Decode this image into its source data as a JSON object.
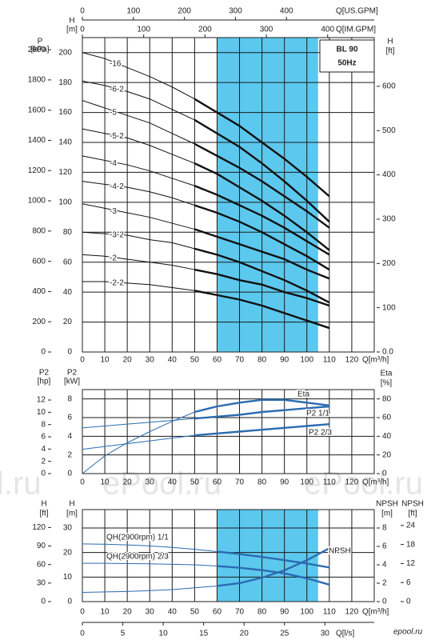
{
  "chart_data": [
    {
      "type": "line",
      "model": "BL 90",
      "frequency": "50Hz",
      "x": [
        0,
        10,
        20,
        30,
        40,
        50,
        60,
        70,
        80,
        90,
        100,
        110
      ],
      "xlabel": "Q[m³/h]",
      "xlim": [
        0,
        130
      ],
      "xticks": [
        0,
        10,
        20,
        30,
        40,
        50,
        60,
        70,
        80,
        90,
        100,
        110,
        120
      ],
      "x2label": "Q[US.GPM]",
      "x2lim": [
        0,
        572
      ],
      "x2ticks": [
        0,
        100,
        200,
        300,
        400
      ],
      "x3label": "Q[IM.GPM]",
      "x3lim": [
        0,
        476
      ],
      "x3ticks": [
        0,
        100,
        200,
        300,
        400
      ],
      "ylabel": [
        "H",
        "[m]"
      ],
      "ylim": [
        0,
        210
      ],
      "yticks": [
        0,
        20,
        40,
        60,
        80,
        100,
        120,
        140,
        160,
        180,
        200
      ],
      "y2label": [
        "H",
        "[ft]"
      ],
      "y2lim": [
        0,
        710
      ],
      "y2ticks": [
        {
          "value": 0,
          "label": "0.0"
        },
        100,
        200,
        300,
        400,
        500,
        600
      ],
      "y3label": [
        "P",
        "[kPa]"
      ],
      "y3lim": [
        0,
        2080
      ],
      "y3ticks": [
        0,
        200,
        400,
        600,
        800,
        1000,
        1200,
        1400,
        1600,
        1800,
        2000
      ],
      "band": [
        60,
        105
      ],
      "band_color": "#5cc8ee",
      "grid": true,
      "series": [
        {
          "name": "-16",
          "color": "#111111",
          "values": [
            200,
            196,
            190,
            184,
            177,
            169,
            160,
            151,
            140,
            129,
            117,
            104
          ]
        },
        {
          "name": "-6-2",
          "color": "#111111",
          "values": [
            181,
            178,
            174,
            169,
            162,
            155,
            146,
            137,
            126,
            114,
            101,
            87
          ]
        },
        {
          "name": "-5",
          "color": "#111111",
          "values": [
            168,
            163,
            158,
            153,
            146,
            139,
            131,
            123,
            114,
            104,
            94,
            83
          ]
        },
        {
          "name": "-5-2",
          "color": "#111111",
          "values": [
            149,
            146,
            143,
            138,
            132,
            126,
            119,
            110,
            101,
            91,
            80,
            68
          ]
        },
        {
          "name": "-4",
          "color": "#111111",
          "values": [
            131,
            128,
            125,
            121,
            116,
            111,
            105,
            98,
            91,
            83,
            74,
            65
          ]
        },
        {
          "name": "-4-2",
          "color": "#111111",
          "values": [
            114,
            112,
            110,
            107,
            103,
            98,
            93,
            87,
            80,
            72,
            64,
            55
          ]
        },
        {
          "name": "-3",
          "color": "#111111",
          "values": [
            99,
            96,
            93,
            90,
            86,
            82,
            77,
            72,
            67,
            62,
            55,
            49
          ]
        },
        {
          "name": "-3-2",
          "color": "#111111",
          "values": [
            80,
            79,
            78,
            75,
            73,
            69,
            65,
            60,
            54,
            48,
            41,
            33
          ]
        },
        {
          "name": "-2",
          "color": "#111111",
          "values": [
            65,
            64,
            62,
            60,
            58,
            55,
            52,
            48,
            45,
            40,
            36,
            31
          ]
        },
        {
          "name": "-2-2",
          "color": "#111111",
          "values": [
            47,
            47,
            46,
            45,
            43,
            41,
            38,
            35,
            31,
            26,
            21,
            16
          ]
        }
      ]
    },
    {
      "type": "line",
      "x": [
        0,
        10,
        20,
        30,
        40,
        50,
        60,
        70,
        80,
        90,
        100,
        110
      ],
      "xlabel": "Q[m³/h]",
      "xlim": [
        0,
        130
      ],
      "xticks": [
        0,
        10,
        20,
        30,
        40,
        50,
        60,
        70,
        80,
        90,
        100,
        110,
        120
      ],
      "ylabel": [
        "P2",
        "[kW]"
      ],
      "ylim": [
        0,
        9
      ],
      "yticks": [
        0,
        2,
        4,
        6,
        8
      ],
      "y2label": [
        "Eta",
        "[%]"
      ],
      "y2lim": [
        0,
        90
      ],
      "y2ticks": [
        0,
        20,
        40,
        60,
        80
      ],
      "y3label": [
        "P2",
        "[hp]"
      ],
      "y3lim": [
        0,
        13.7
      ],
      "y3ticks": [
        0,
        2,
        4,
        6,
        8,
        10,
        12
      ],
      "grid": true,
      "series": [
        {
          "name": "Eta",
          "color": "#2b6cb0",
          "axis": "y2",
          "values": [
            0,
            19,
            33,
            45,
            56,
            66,
            72,
            76,
            79,
            79,
            76,
            73
          ]
        },
        {
          "name": "P2 1/1",
          "color": "#2b6cb0",
          "values": [
            4.9,
            5.1,
            5.3,
            5.5,
            5.7,
            5.9,
            6.1,
            6.3,
            6.6,
            6.8,
            7.0,
            7.2
          ]
        },
        {
          "name": "P2 2/3",
          "color": "#2b6cb0",
          "values": [
            2.6,
            2.9,
            3.2,
            3.5,
            3.8,
            4.1,
            4.3,
            4.5,
            4.7,
            4.9,
            5.1,
            5.3
          ]
        }
      ]
    },
    {
      "type": "line",
      "x": [
        0,
        10,
        20,
        30,
        40,
        50,
        60,
        70,
        80,
        90,
        100,
        110
      ],
      "xlabel": "Q[m³/h]",
      "xlim": [
        0,
        130
      ],
      "xticks": [
        0,
        10,
        20,
        30,
        40,
        50,
        60,
        70,
        80,
        90,
        100,
        110,
        120
      ],
      "x2label": "Q[l/s]",
      "x2lim": [
        0,
        36.1
      ],
      "x2ticks": [
        0,
        5,
        10,
        15,
        20,
        25,
        30
      ],
      "ylabel": [
        "H",
        "[m]"
      ],
      "ylim": [
        0,
        37.5
      ],
      "yticks": [
        0,
        10,
        20,
        30
      ],
      "y2label": [
        "NPSH",
        "[m]"
      ],
      "y2lim": [
        0,
        10
      ],
      "y2ticks": [
        0,
        2,
        4,
        6,
        8
      ],
      "y3label": [
        "H",
        "[ft]"
      ],
      "y3lim": [
        0,
        149
      ],
      "y3ticks": [
        0,
        30,
        60,
        90,
        120
      ],
      "y4label": [
        "NPSH",
        "[ft]"
      ],
      "y4lim": [
        0,
        29
      ],
      "y4ticks": [
        0,
        6,
        12,
        18,
        24
      ],
      "band": [
        60,
        105
      ],
      "band_color": "#5cc8ee",
      "grid": true,
      "series": [
        {
          "name": "QH(2900rpm) 1/1",
          "color": "#2b6cb0",
          "values": [
            23.5,
            23.4,
            23.1,
            22.7,
            22.1,
            21.3,
            20.4,
            19.4,
            18.2,
            16.9,
            15.5,
            13.9
          ]
        },
        {
          "name": "QH(2900rpm) 2/3",
          "color": "#2b6cb0",
          "values": [
            15.6,
            15.6,
            15.5,
            15.4,
            15.2,
            15.0,
            14.5,
            13.8,
            12.8,
            11.5,
            9.5,
            6.9
          ]
        },
        {
          "name": "NPSH",
          "color": "#2b6cb0",
          "axis": "y2",
          "values": [
            1.0,
            1.05,
            1.1,
            1.2,
            1.3,
            1.5,
            1.7,
            2.0,
            2.6,
            3.4,
            4.5,
            5.8
          ]
        }
      ]
    }
  ],
  "watermarks": [
    "l.ru",
    "ePool.ru",
    "ePool.ru"
  ],
  "logo": "epool.ru"
}
